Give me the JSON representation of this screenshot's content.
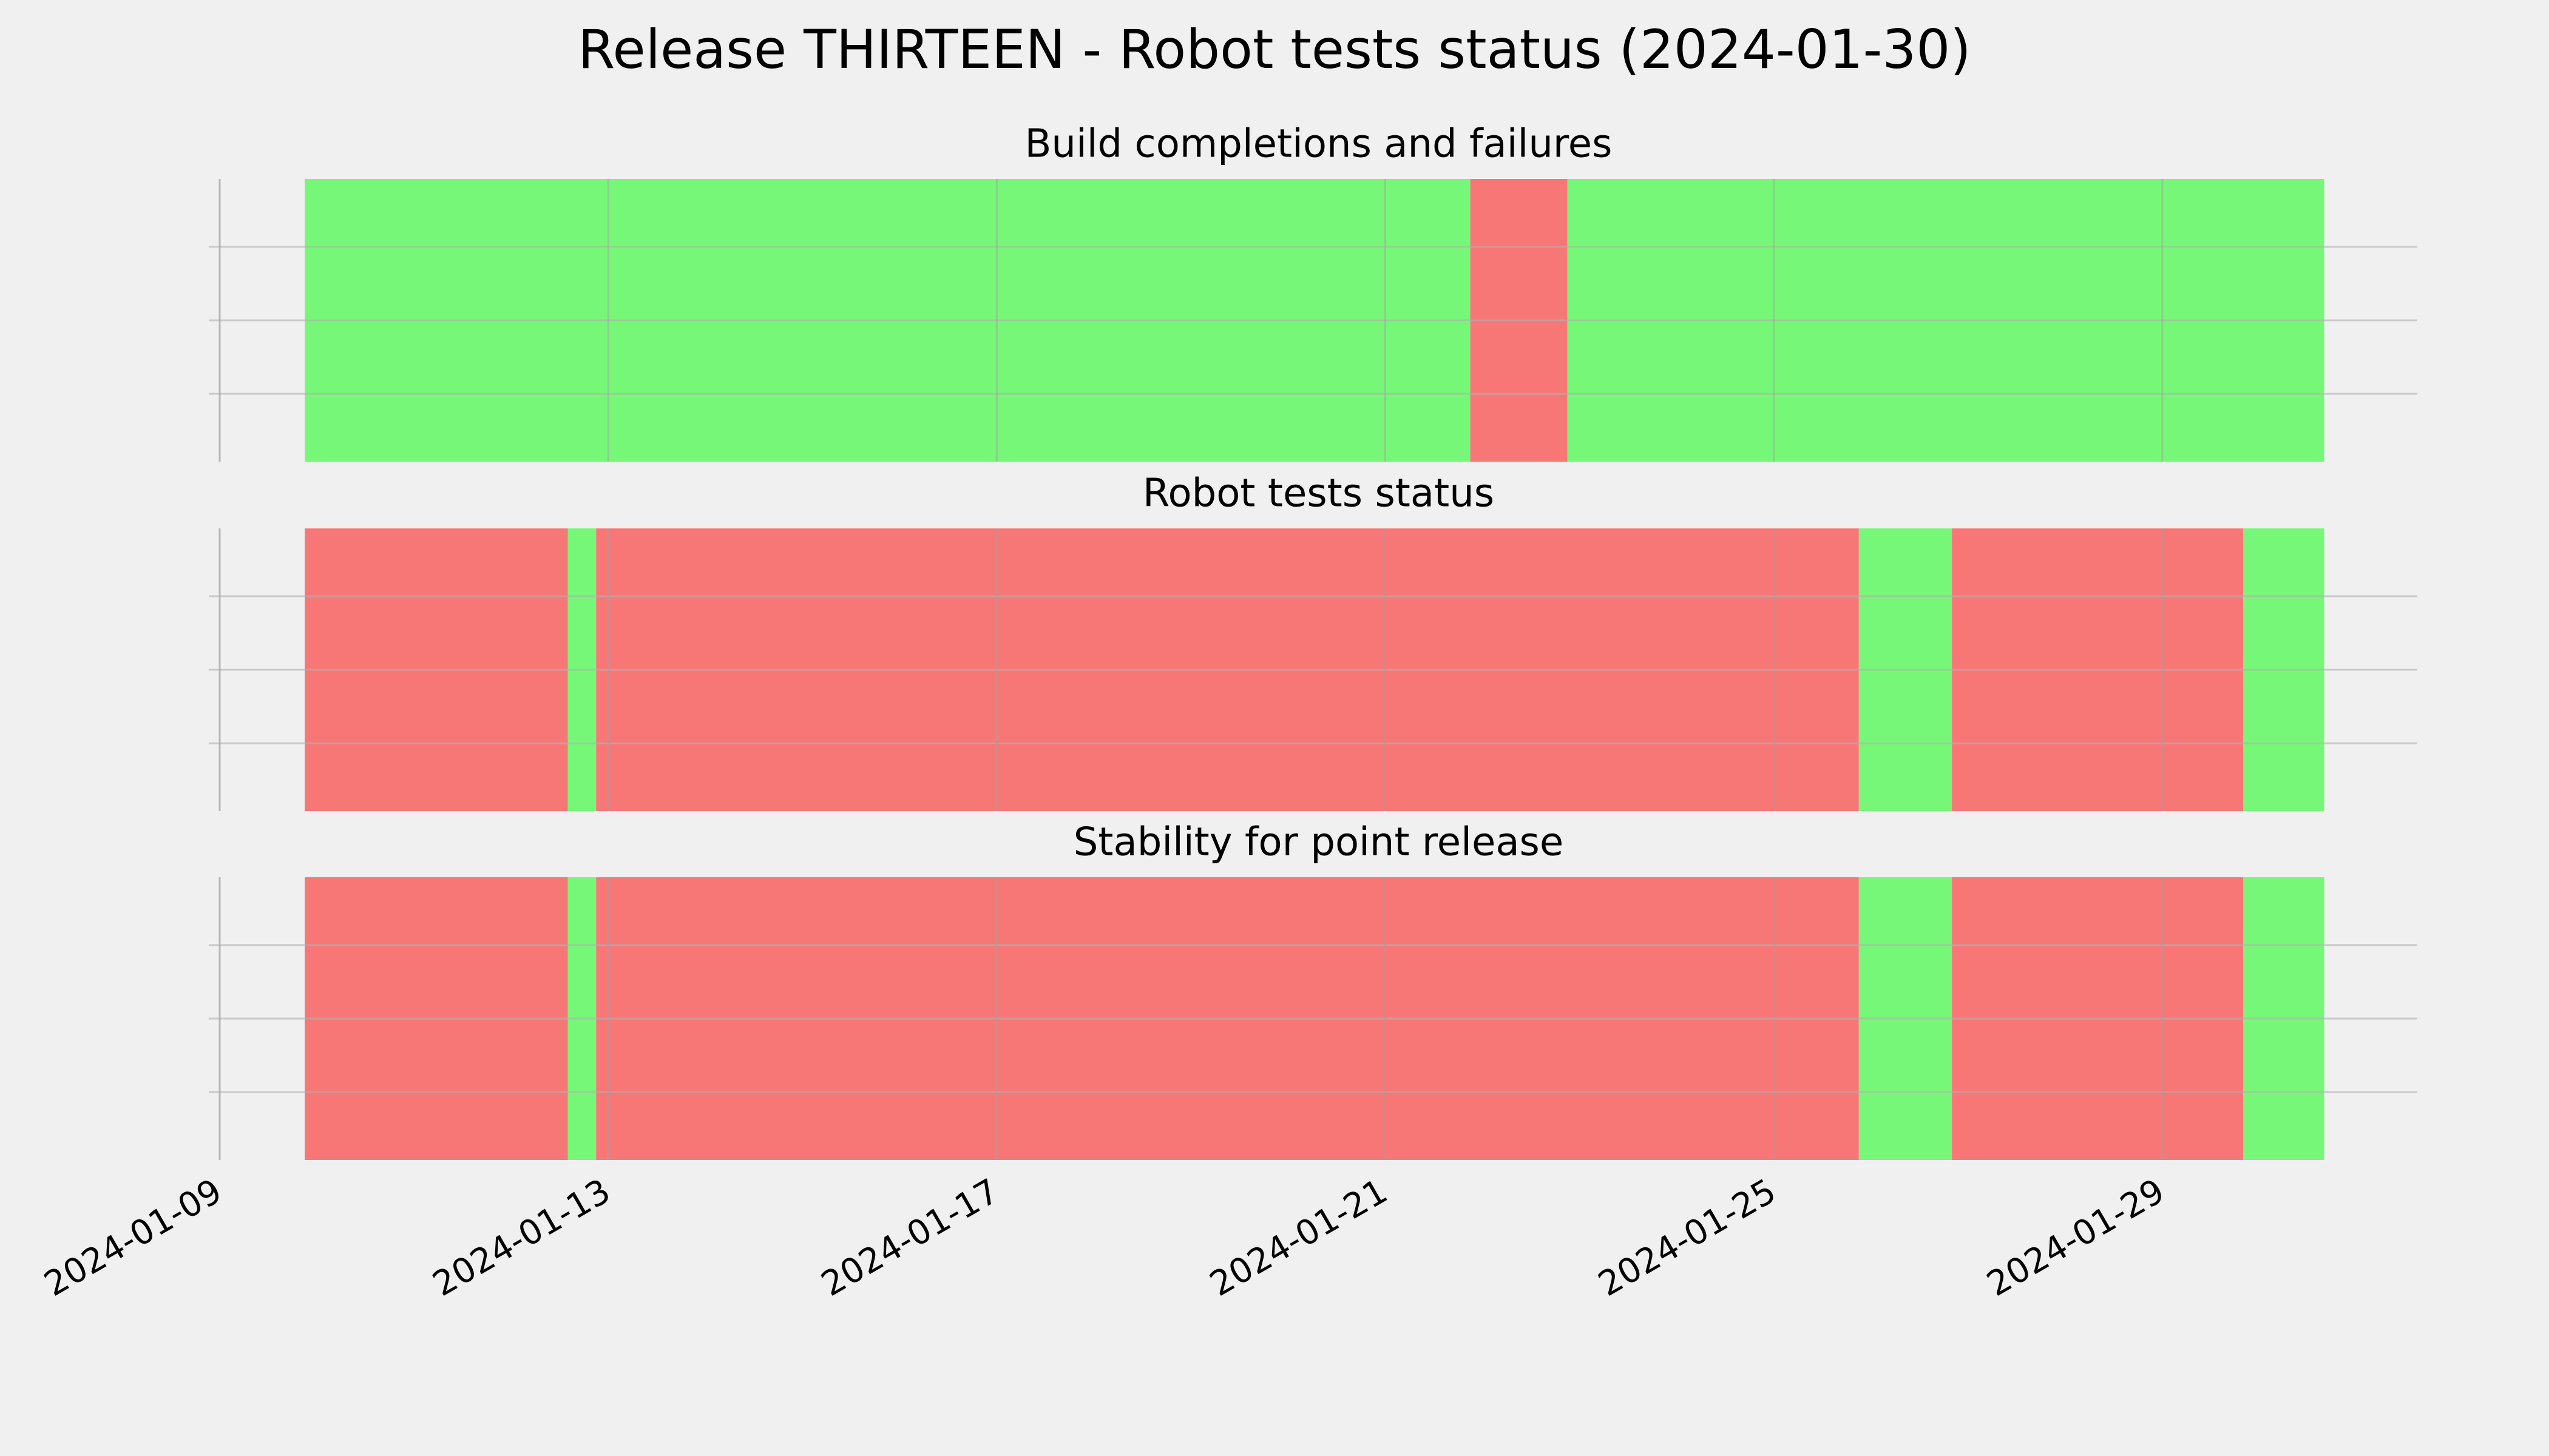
{
  "title": "Release THIRTEEN - Robot tests status (2024-01-30)",
  "chart_data": [
    {
      "type": "timeline",
      "title": "Build completions and failures",
      "spans": [
        {
          "start": "2024-01-09T21:00",
          "end": "2024-01-21T21:00",
          "color": "#77f777"
        },
        {
          "start": "2024-01-21T21:00",
          "end": "2024-01-22T21:00",
          "color": "#f77777"
        },
        {
          "start": "2024-01-22T21:00",
          "end": "2024-01-30T16:00",
          "color": "#77f777"
        }
      ]
    },
    {
      "type": "timeline",
      "title": "Robot tests status",
      "spans": [
        {
          "start": "2024-01-09T21:00",
          "end": "2024-01-12T14:00",
          "color": "#f77777"
        },
        {
          "start": "2024-01-12T14:00",
          "end": "2024-01-12T21:00",
          "color": "#77f777"
        },
        {
          "start": "2024-01-12T21:00",
          "end": "2024-01-25T21:00",
          "color": "#f77777"
        },
        {
          "start": "2024-01-25T21:00",
          "end": "2024-01-26T20:00",
          "color": "#77f777"
        },
        {
          "start": "2024-01-26T20:00",
          "end": "2024-01-29T20:00",
          "color": "#f77777"
        },
        {
          "start": "2024-01-29T20:00",
          "end": "2024-01-30T16:00",
          "color": "#77f777"
        }
      ]
    },
    {
      "type": "timeline",
      "title": "Stability for point release",
      "spans": [
        {
          "start": "2024-01-09T21:00",
          "end": "2024-01-12T14:00",
          "color": "#f77777"
        },
        {
          "start": "2024-01-12T14:00",
          "end": "2024-01-12T21:00",
          "color": "#77f777"
        },
        {
          "start": "2024-01-12T21:00",
          "end": "2024-01-25T21:00",
          "color": "#f77777"
        },
        {
          "start": "2024-01-25T21:00",
          "end": "2024-01-26T20:00",
          "color": "#77f777"
        },
        {
          "start": "2024-01-26T20:00",
          "end": "2024-01-29T20:00",
          "color": "#f77777"
        },
        {
          "start": "2024-01-29T20:00",
          "end": "2024-01-30T16:00",
          "color": "#77f777"
        }
      ],
      "xlim": [
        "2024-01-09",
        "2024-01-31T15:00"
      ],
      "xticks": [
        "2024-01-09",
        "2024-01-13",
        "2024-01-17",
        "2024-01-21",
        "2024-01-25",
        "2024-01-29"
      ],
      "grid": true
    }
  ]
}
